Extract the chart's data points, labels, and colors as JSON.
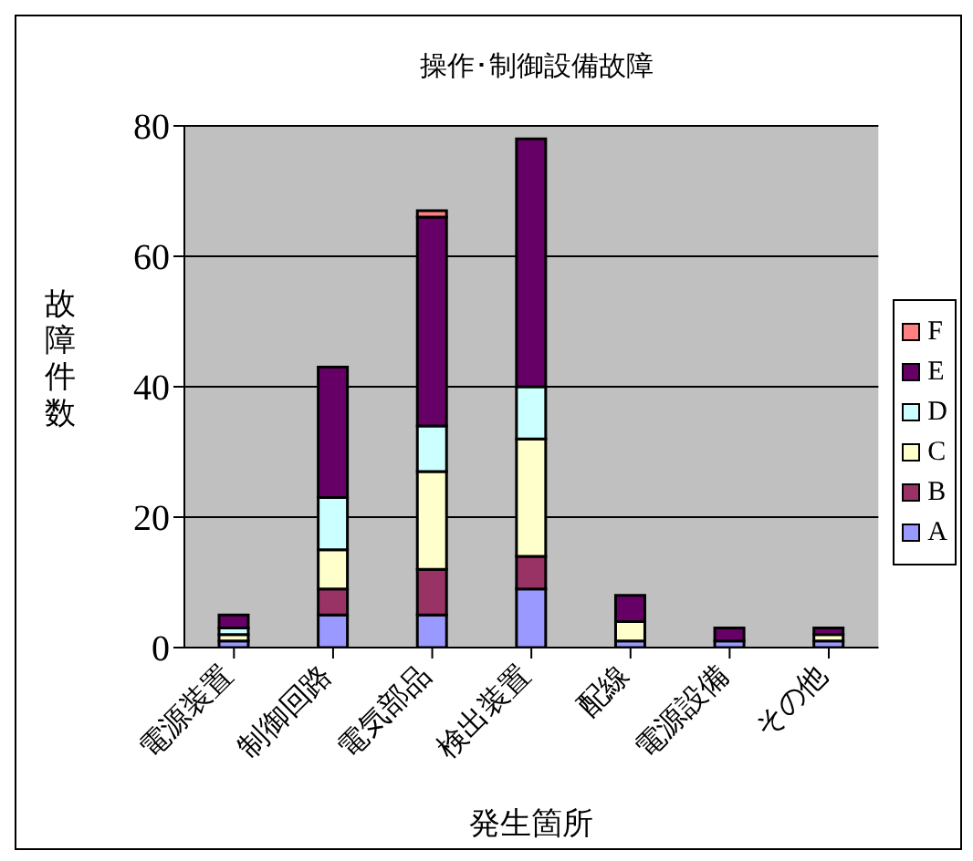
{
  "chart_data": {
    "type": "bar",
    "title": "操作･制御設備故障",
    "xlabel": "発生箇所",
    "ylabel": "故障件数",
    "categories": [
      "電源装置",
      "制御回路",
      "電気部品",
      "検出装置",
      "配線",
      "電源設備",
      "その他"
    ],
    "stacked": true,
    "ylim": [
      0,
      80
    ],
    "yticks": [
      0,
      20,
      40,
      60,
      80
    ],
    "grid": "y",
    "legend": "right",
    "series": [
      {
        "name": "A",
        "color": "#9999ff",
        "values": [
          1,
          5,
          5,
          9,
          1,
          1,
          1
        ]
      },
      {
        "name": "B",
        "color": "#993366",
        "values": [
          0,
          4,
          7,
          5,
          0,
          0,
          0
        ]
      },
      {
        "name": "C",
        "color": "#ffffcc",
        "values": [
          1,
          6,
          15,
          18,
          3,
          0,
          1
        ]
      },
      {
        "name": "D",
        "color": "#ccffff",
        "values": [
          1,
          8,
          7,
          8,
          0,
          0,
          0
        ]
      },
      {
        "name": "E",
        "color": "#660066",
        "values": [
          2,
          20,
          32,
          38,
          4,
          2,
          1
        ]
      },
      {
        "name": "F",
        "color": "#ff8080",
        "values": [
          0,
          0,
          1,
          0,
          0,
          0,
          0
        ]
      }
    ]
  }
}
